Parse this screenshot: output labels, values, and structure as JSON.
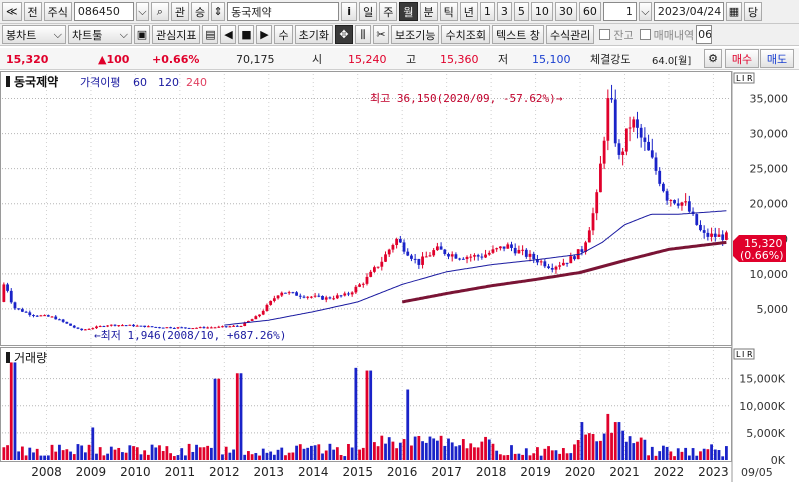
{
  "toolbar1": {
    "up_label": "≪",
    "prev_label": "전",
    "market_type": "주식",
    "code": "086450",
    "tag_label": "관",
    "up_arrow_label": "승",
    "stock_name": "동국제약",
    "info_label": "i",
    "periods": [
      "일",
      "주",
      "월",
      "분",
      "틱",
      "년"
    ],
    "selected_period": "월",
    "intervals": [
      "1",
      "3",
      "5",
      "10",
      "30",
      "60"
    ],
    "count": "1",
    "date": "2023/04/24",
    "end_label": "당"
  },
  "toolbar2": {
    "chart_type": "봉차트",
    "chart_tool": "차트툴",
    "watch_label": "관심지표",
    "su_label": "수",
    "reset_label": "초기화",
    "aux_label": "보조기능",
    "calc_label": "수치조회",
    "text_window": "텍스트 창",
    "formula_label": "수식관리",
    "balance_label": "잔고",
    "history_label": "매매내역",
    "right_code": "06"
  },
  "pricebar": {
    "price": "15,320",
    "change": "▲100",
    "change_pct": "+0.66%",
    "volume": "70,175",
    "open_label": "시",
    "open": "15,240",
    "high_label": "고",
    "high": "15,360",
    "low_label": "저",
    "low": "15,100",
    "strength_label": "체결강도",
    "strength": "64.0[월]",
    "buy_label": "매수",
    "sell_label": "매도"
  },
  "chart": {
    "name": "동국제약",
    "ma_label": "가격이평",
    "ma_periods": [
      "60",
      "120",
      "240"
    ],
    "volume_title": "거래량",
    "high_note": "최고 36,150(2020/09, -57.62%)→",
    "low_note": "←최저 1,946(2008/10, +687.26%)",
    "current_price": "15,320",
    "current_pct": "(0.66%)",
    "scale_tags": [
      "L",
      "I",
      "R"
    ],
    "end_date": "09/05",
    "colors": {
      "up": "#e0002b",
      "down": "#1a23c8",
      "ma60": "#1a1aa0",
      "ma120": "#1a1aa0",
      "ma240": "#7a1435"
    }
  },
  "chart_data": {
    "type": "candlestick",
    "title": "동국제약",
    "interval": "월",
    "price_axis": {
      "ticks": [
        5000,
        10000,
        15000,
        20000,
        25000,
        30000,
        35000
      ],
      "tick_labels": [
        "5,000",
        "10,000",
        "15,000",
        "20,000",
        "25,000",
        "30,000",
        "35,000"
      ],
      "ylim": [
        0,
        38500
      ]
    },
    "volume_axis": {
      "ticks": [
        0,
        5000,
        10000,
        15000
      ],
      "tick_labels": [
        "0K",
        "5,000K",
        "10,000K",
        "15,000K"
      ],
      "ylim": [
        0,
        19000
      ]
    },
    "x_labels": [
      "2008",
      "2009",
      "2010",
      "2011",
      "2012",
      "2013",
      "2014",
      "2015",
      "2016",
      "2017",
      "2018",
      "2019",
      "2020",
      "2021",
      "2022",
      "2023"
    ],
    "price_anchors": [
      {
        "year": 2007.0,
        "v": 6000
      },
      {
        "year": 2007.1,
        "v": 9000
      },
      {
        "year": 2007.3,
        "v": 5200
      },
      {
        "year": 2007.7,
        "v": 4200
      },
      {
        "year": 2008.2,
        "v": 3800
      },
      {
        "year": 2008.8,
        "v": 1946
      },
      {
        "year": 2009.4,
        "v": 2700
      },
      {
        "year": 2009.8,
        "v": 2700
      },
      {
        "year": 2010.5,
        "v": 2400
      },
      {
        "year": 2011.3,
        "v": 2300
      },
      {
        "year": 2011.9,
        "v": 2400
      },
      {
        "year": 2012.4,
        "v": 2600
      },
      {
        "year": 2012.8,
        "v": 4000
      },
      {
        "year": 2013.3,
        "v": 7500
      },
      {
        "year": 2013.7,
        "v": 7000
      },
      {
        "year": 2014.3,
        "v": 6500
      },
      {
        "year": 2014.8,
        "v": 7000
      },
      {
        "year": 2015.2,
        "v": 9000
      },
      {
        "year": 2015.6,
        "v": 12000
      },
      {
        "year": 2015.9,
        "v": 15000
      },
      {
        "year": 2016.4,
        "v": 11500
      },
      {
        "year": 2016.8,
        "v": 13500
      },
      {
        "year": 2017.3,
        "v": 12500
      },
      {
        "year": 2017.8,
        "v": 12500
      },
      {
        "year": 2018.4,
        "v": 14000
      },
      {
        "year": 2018.9,
        "v": 12500
      },
      {
        "year": 2019.4,
        "v": 11000
      },
      {
        "year": 2019.8,
        "v": 12000
      },
      {
        "year": 2020.1,
        "v": 13500
      },
      {
        "year": 2020.4,
        "v": 20000
      },
      {
        "year": 2020.7,
        "v": 36150
      },
      {
        "year": 2020.9,
        "v": 26000
      },
      {
        "year": 2021.2,
        "v": 32000
      },
      {
        "year": 2021.6,
        "v": 27000
      },
      {
        "year": 2022.0,
        "v": 21000
      },
      {
        "year": 2022.4,
        "v": 20000
      },
      {
        "year": 2022.8,
        "v": 15500
      },
      {
        "year": 2023.3,
        "v": 15320
      }
    ],
    "ma240_anchors": [
      {
        "year": 2016.0,
        "v": 6000
      },
      {
        "year": 2017.0,
        "v": 7200
      },
      {
        "year": 2018.0,
        "v": 8300
      },
      {
        "year": 2019.0,
        "v": 9200
      },
      {
        "year": 2020.0,
        "v": 10200
      },
      {
        "year": 2021.0,
        "v": 11900
      },
      {
        "year": 2022.0,
        "v": 13500
      },
      {
        "year": 2023.3,
        "v": 14500
      }
    ],
    "ma60_anchors": [
      {
        "year": 2012.0,
        "v": 2700
      },
      {
        "year": 2013.0,
        "v": 3400
      },
      {
        "year": 2014.0,
        "v": 4600
      },
      {
        "year": 2015.0,
        "v": 6000
      },
      {
        "year": 2016.0,
        "v": 8500
      },
      {
        "year": 2017.0,
        "v": 10300
      },
      {
        "year": 2018.0,
        "v": 11300
      },
      {
        "year": 2019.0,
        "v": 12000
      },
      {
        "year": 2020.0,
        "v": 12800
      },
      {
        "year": 2020.5,
        "v": 14500
      },
      {
        "year": 2021.0,
        "v": 17000
      },
      {
        "year": 2021.6,
        "v": 18500
      },
      {
        "year": 2022.2,
        "v": 18500
      },
      {
        "year": 2023.3,
        "v": 19000
      }
    ],
    "volume_spikes": [
      {
        "year": 2007.2,
        "v": 18000
      },
      {
        "year": 2009.0,
        "v": 6000
      },
      {
        "year": 2011.8,
        "v": 15000
      },
      {
        "year": 2012.3,
        "v": 16000
      },
      {
        "year": 2014.9,
        "v": 17000
      },
      {
        "year": 2015.2,
        "v": 16500
      },
      {
        "year": 2016.1,
        "v": 13000
      },
      {
        "year": 2020.0,
        "v": 7000
      },
      {
        "year": 2020.6,
        "v": 8500
      },
      {
        "year": 2020.8,
        "v": 7000
      }
    ]
  }
}
